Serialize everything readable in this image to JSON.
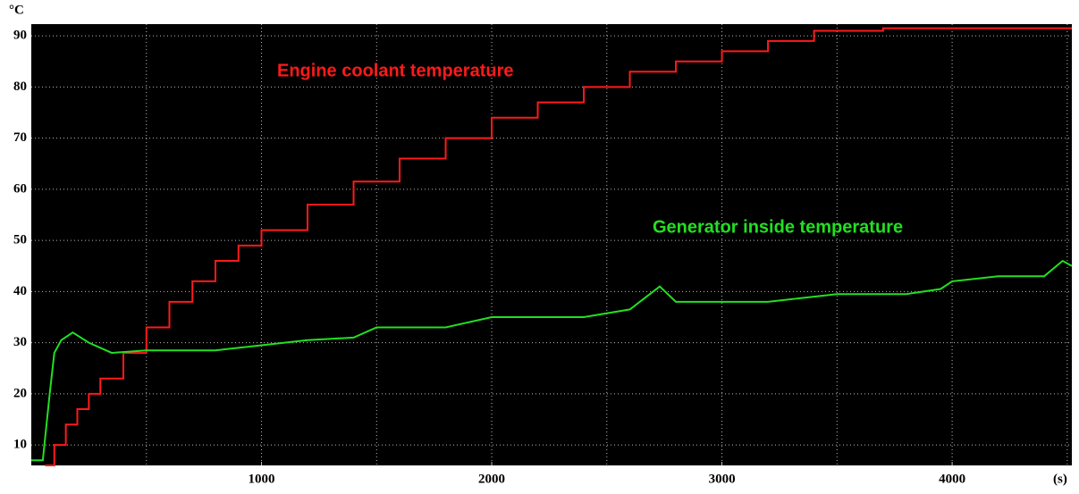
{
  "chart_data": {
    "type": "line",
    "step": true,
    "y_unit": "°C",
    "x_unit": "(s)",
    "xlim": [
      0,
      4520
    ],
    "xticks": [
      1000,
      2000,
      3000,
      4000
    ],
    "x_grid_lines": [
      500,
      1000,
      1500,
      2000,
      2500,
      3000,
      3500,
      4000,
      4500
    ],
    "ylim": [
      6,
      92.3
    ],
    "yticks": [
      10,
      20,
      30,
      40,
      50,
      60,
      70,
      80,
      90
    ],
    "grid": true,
    "background": "#000000",
    "series": [
      {
        "name": "Engine coolant temperature",
        "color": "#ff1a1a",
        "step": true,
        "x": [
          60,
          100,
          150,
          200,
          250,
          300,
          400,
          500,
          600,
          700,
          800,
          900,
          1000,
          1200,
          1400,
          1600,
          1800,
          2000,
          2200,
          2400,
          2600,
          2800,
          3000,
          3200,
          3400,
          3700,
          4520
        ],
        "values": [
          6,
          10,
          14,
          17,
          20,
          23,
          28,
          33,
          38,
          42,
          46,
          49,
          52,
          57,
          61.5,
          66,
          70,
          74,
          77,
          80,
          83,
          85,
          87,
          89,
          91,
          91.5,
          91.5
        ]
      },
      {
        "name": "Generator inside temperature",
        "color": "#22e022",
        "step": false,
        "x": [
          0,
          50,
          80,
          100,
          130,
          180,
          250,
          350,
          500,
          800,
          1000,
          1200,
          1400,
          1500,
          1800,
          2000,
          2400,
          2600,
          2730,
          2800,
          3000,
          3200,
          3500,
          3800,
          3950,
          4000,
          4200,
          4400,
          4480,
          4520
        ],
        "values": [
          7,
          7,
          20,
          28,
          30.5,
          32,
          30,
          28,
          28.5,
          28.5,
          29.5,
          30.5,
          31,
          33,
          33,
          35,
          35,
          36.5,
          41,
          38,
          38,
          38,
          39.5,
          39.5,
          40.5,
          42,
          43,
          43,
          46,
          45
        ]
      }
    ]
  }
}
